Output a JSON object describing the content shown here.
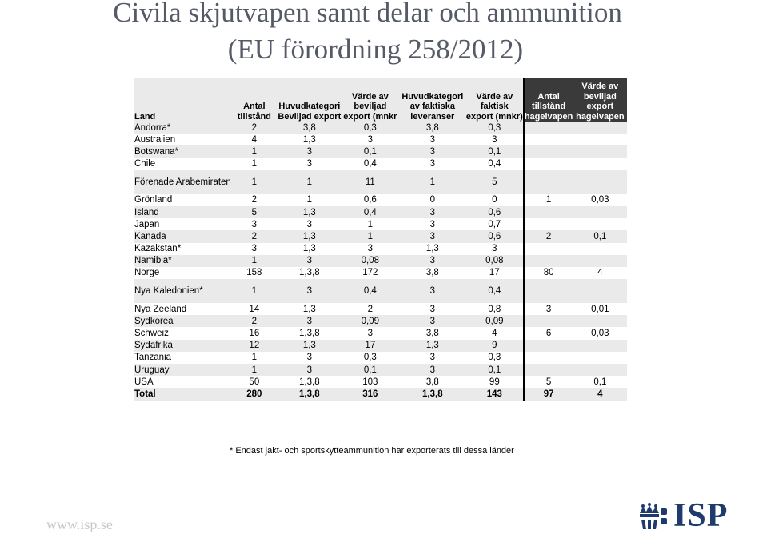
{
  "title_line1": "Civila skjutvapen samt delar och ammunition",
  "title_line2": "(EU förordning 258/2012)",
  "headers": [
    "Land",
    "Antal tillstånd",
    "Huvudkategori Beviljad export",
    "Värde av beviljad export (mnkr",
    "Huvudkategori av faktiska leveranser",
    "Värde av faktisk export (mnkr)",
    "Antal tillstånd hagelvapen",
    "Värde av beviljad export hagelvapen"
  ],
  "rows": [
    [
      "Andorra*",
      "2",
      "3,8",
      "0,3",
      "3,8",
      "0,3",
      "",
      ""
    ],
    [
      "Australien",
      "4",
      "1,3",
      "3",
      "3",
      "3",
      "",
      ""
    ],
    [
      "Botswana*",
      "1",
      "3",
      "0,1",
      "3",
      "0,1",
      "",
      ""
    ],
    [
      "Chile",
      "1",
      "3",
      "0,4",
      "3",
      "0,4",
      "",
      ""
    ],
    [
      "Förenade Arabemiraten",
      "1",
      "1",
      "11",
      "1",
      "5",
      "",
      ""
    ],
    [
      "Grönland",
      "2",
      "1",
      "0,6",
      "0",
      "0",
      "1",
      "0,03"
    ],
    [
      "Island",
      "5",
      "1,3",
      "0,4",
      "3",
      "0,6",
      "",
      ""
    ],
    [
      "Japan",
      "3",
      "3",
      "1",
      "3",
      "0,7",
      "",
      ""
    ],
    [
      "Kanada",
      "2",
      "1,3",
      "1",
      "3",
      "0,6",
      "2",
      "0,1"
    ],
    [
      "Kazakstan*",
      "3",
      "1,3",
      "3",
      "1,3",
      "3",
      "",
      ""
    ],
    [
      "Namibia*",
      "1",
      "3",
      "0,08",
      "3",
      "0,08",
      "",
      ""
    ],
    [
      "Norge",
      "158",
      "1,3,8",
      "172",
      "3,8",
      "17",
      "80",
      "4"
    ],
    [
      "Nya Kaledonien*",
      "1",
      "3",
      "0,4",
      "3",
      "0,4",
      "",
      ""
    ],
    [
      "Nya Zeeland",
      "14",
      "1,3",
      "2",
      "3",
      "0,8",
      "3",
      "0,01"
    ],
    [
      "Sydkorea",
      "2",
      "3",
      "0,09",
      "3",
      "0,09",
      "",
      ""
    ],
    [
      "Schweiz",
      "16",
      "1,3,8",
      "3",
      "3,8",
      "4",
      "6",
      "0,03"
    ],
    [
      "Sydafrika",
      "12",
      "1,3",
      "17",
      "1,3",
      "9",
      "",
      ""
    ],
    [
      "Tanzania",
      "1",
      "3",
      "0,3",
      "3",
      "0,3",
      "",
      ""
    ],
    [
      "Uruguay",
      "1",
      "3",
      "0,1",
      "3",
      "0,1",
      "",
      ""
    ],
    [
      "USA",
      "50",
      "1,3,8",
      "103",
      "3,8",
      "99",
      "5",
      "0,1"
    ],
    [
      "Total",
      "280",
      "1,3,8",
      "316",
      "1,3,8",
      "143",
      "97",
      "4"
    ]
  ],
  "footnote": "* Endast jakt- och sportskytteammunition har exporterats till dessa länder",
  "url": "www.isp.se",
  "logo_text": "ISP",
  "colors": {
    "title": "#555a66",
    "logo": "#1f3b6e",
    "row_shade": "#eaeaea",
    "header_dark": "#3a3a3a"
  }
}
